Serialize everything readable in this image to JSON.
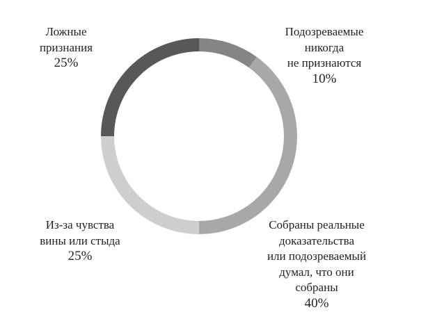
{
  "chart_data": {
    "type": "pie",
    "donut": true,
    "slices": [
      {
        "label": "Подозреваемые никогда не признаются",
        "label_lines": [
          "Подозреваемые",
          "никогда",
          "не признаются"
        ],
        "value": 10,
        "value_label": "10%",
        "color": "#848586"
      },
      {
        "label": "Собраны реальные доказательства или подозреваемый думал, что они собраны",
        "label_lines": [
          "Собраны реальные",
          "доказательства",
          "или подозреваемый",
          "думал, что они",
          "собраны"
        ],
        "value": 40,
        "value_label": "40%",
        "color": "#a7a8a9"
      },
      {
        "label": "Из-за чувства вины или стыда",
        "label_lines": [
          "Из-за чувства",
          "вины или стыда"
        ],
        "value": 25,
        "value_label": "25%",
        "color": "#cdcecf"
      },
      {
        "label": "Ложные признания",
        "label_lines": [
          "Ложные",
          "признания"
        ],
        "value": 25,
        "value_label": "25%",
        "color": "#58585a"
      }
    ],
    "start": "12 o'clock",
    "direction": "clockwise"
  }
}
